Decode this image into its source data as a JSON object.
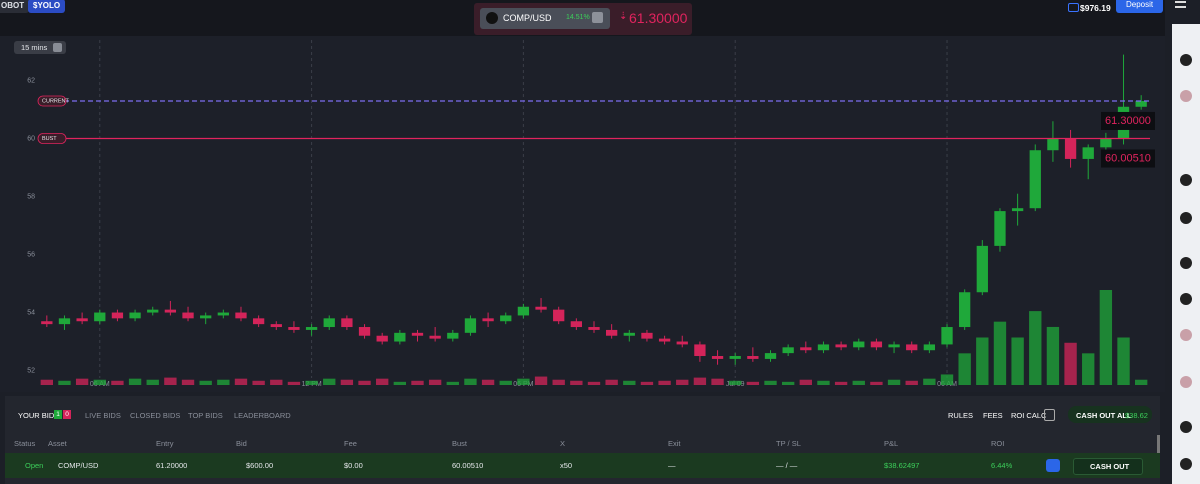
{
  "topbar": {
    "left_buttons": [
      "OBOT",
      "$YOLO"
    ],
    "balance": "$976.19",
    "deposit": "Deposit"
  },
  "ticker": {
    "asset": "COMP/USD",
    "change": "14.51%",
    "price": "61.30000"
  },
  "timeframe": "15 mins",
  "chart": {
    "type": "candlestick",
    "categories": [
      null,
      null,
      null,
      "06 AM",
      null,
      null,
      null,
      null,
      null,
      null,
      null,
      null,
      null,
      null,
      null,
      "12 PM",
      null,
      null,
      null,
      null,
      null,
      null,
      null,
      null,
      null,
      null,
      null,
      "06 PM",
      null,
      null,
      null,
      null,
      null,
      null,
      null,
      null,
      null,
      null,
      null,
      "Jul 09",
      null,
      null,
      null,
      null,
      null,
      null,
      null,
      null,
      null,
      null,
      null,
      "06 AM",
      null,
      null,
      null,
      null,
      null,
      null,
      null,
      null,
      null,
      null,
      null
    ],
    "open": [
      53.7,
      53.6,
      53.8,
      53.7,
      54.0,
      53.8,
      54.0,
      54.1,
      54.0,
      53.8,
      53.9,
      54.0,
      53.8,
      53.6,
      53.5,
      53.4,
      53.5,
      53.8,
      53.5,
      53.2,
      53.0,
      53.3,
      53.2,
      53.1,
      53.3,
      53.8,
      53.7,
      53.9,
      54.2,
      54.1,
      53.7,
      53.5,
      53.4,
      53.2,
      53.3,
      53.1,
      53.0,
      52.9,
      52.5,
      52.4,
      52.5,
      52.4,
      52.6,
      52.8,
      52.7,
      52.9,
      52.8,
      53.0,
      52.8,
      52.9,
      52.7,
      52.9,
      53.5,
      54.7,
      56.3,
      57.5,
      57.6,
      59.6,
      60.0,
      59.3,
      59.7,
      60.0,
      61.1
    ],
    "high": [
      53.9,
      53.9,
      54.0,
      54.1,
      54.1,
      54.1,
      54.2,
      54.4,
      54.2,
      54.0,
      54.1,
      54.2,
      53.9,
      53.7,
      53.7,
      53.6,
      53.9,
      53.9,
      53.6,
      53.3,
      53.4,
      53.4,
      53.5,
      53.4,
      53.9,
      54.0,
      54.0,
      54.3,
      54.5,
      54.2,
      53.8,
      53.7,
      53.6,
      53.4,
      53.4,
      53.2,
      53.2,
      53.0,
      52.7,
      52.6,
      52.8,
      52.7,
      52.9,
      53.0,
      53.0,
      53.0,
      53.1,
      53.1,
      53.0,
      53.0,
      53.0,
      53.6,
      54.8,
      56.5,
      57.6,
      58.1,
      59.8,
      60.6,
      60.3,
      59.8,
      60.2,
      62.9,
      61.5
    ],
    "low": [
      53.5,
      53.4,
      53.6,
      53.6,
      53.7,
      53.7,
      53.9,
      53.9,
      53.7,
      53.6,
      53.8,
      53.7,
      53.5,
      53.4,
      53.3,
      53.2,
      53.4,
      53.4,
      53.1,
      52.9,
      52.9,
      53.0,
      53.0,
      53.0,
      53.2,
      53.5,
      53.6,
      53.8,
      54.0,
      53.6,
      53.4,
      53.3,
      53.1,
      53.0,
      53.0,
      52.9,
      52.8,
      52.3,
      52.2,
      52.2,
      52.3,
      52.3,
      52.5,
      52.6,
      52.6,
      52.7,
      52.7,
      52.7,
      52.6,
      52.6,
      52.6,
      52.8,
      53.4,
      54.6,
      56.1,
      57.0,
      57.5,
      59.2,
      59.0,
      58.6,
      59.5,
      59.8,
      61.0
    ],
    "close": [
      53.6,
      53.8,
      53.7,
      54.0,
      53.8,
      54.0,
      54.1,
      54.0,
      53.8,
      53.9,
      54.0,
      53.8,
      53.6,
      53.5,
      53.4,
      53.5,
      53.8,
      53.5,
      53.2,
      53.0,
      53.3,
      53.2,
      53.1,
      53.3,
      53.8,
      53.7,
      53.9,
      54.2,
      54.1,
      53.7,
      53.5,
      53.4,
      53.2,
      53.3,
      53.1,
      53.0,
      52.9,
      52.5,
      52.4,
      52.5,
      52.4,
      52.6,
      52.8,
      52.7,
      52.9,
      52.8,
      53.0,
      52.8,
      52.9,
      52.7,
      52.9,
      53.5,
      54.7,
      56.3,
      57.5,
      57.6,
      59.6,
      60.0,
      59.3,
      59.7,
      60.0,
      61.1,
      61.3
    ],
    "volume": [
      5,
      4,
      6,
      5,
      4,
      6,
      5,
      7,
      5,
      4,
      5,
      6,
      4,
      5,
      3,
      4,
      6,
      5,
      4,
      6,
      3,
      4,
      5,
      3,
      6,
      5,
      4,
      6,
      8,
      5,
      4,
      3,
      5,
      4,
      3,
      4,
      5,
      7,
      6,
      4,
      3,
      4,
      3,
      5,
      4,
      3,
      4,
      3,
      5,
      4,
      6,
      10,
      30,
      45,
      60,
      45,
      70,
      55,
      40,
      30,
      90,
      45,
      5
    ],
    "ylim": [
      51.5,
      63.3
    ],
    "yticks": [
      52,
      54,
      56,
      58,
      60,
      62
    ],
    "up_color": "#1fa83a",
    "down_color": "#d4245a",
    "price_lines": [
      {
        "label": "CURRENT",
        "value": 61.3,
        "value_label": "61.30000",
        "color": "#7b6cf0"
      },
      {
        "label": "BUST",
        "value": 60.0051,
        "value_label": "60.00510",
        "color": "#e0245e"
      }
    ]
  },
  "bids_panel": {
    "tabs": [
      "YOUR BIDS",
      "LIVE BIDS",
      "CLOSED BIDS",
      "TOP BIDS",
      "LEADERBOARD"
    ],
    "badges": [
      "1",
      "0"
    ],
    "actions": [
      "RULES",
      "FEES",
      "ROI CALC"
    ],
    "cash_out_all": "CASH OUT ALL",
    "cash_out_all_amount": "$38.62",
    "table": {
      "columns": [
        "Status",
        "Asset",
        "Entry",
        "Bid",
        "Fee",
        "Bust",
        "X",
        "Exit",
        "TP / SL",
        "P&L",
        "ROI"
      ],
      "rows": [
        [
          "Open",
          "COMP/USD",
          "61.20000",
          "$600.00",
          "$0.00",
          "60.00510",
          "x50",
          "—",
          "— / —",
          "$38.62497",
          "6.44%"
        ]
      ]
    },
    "row_action": "CASH OUT"
  }
}
